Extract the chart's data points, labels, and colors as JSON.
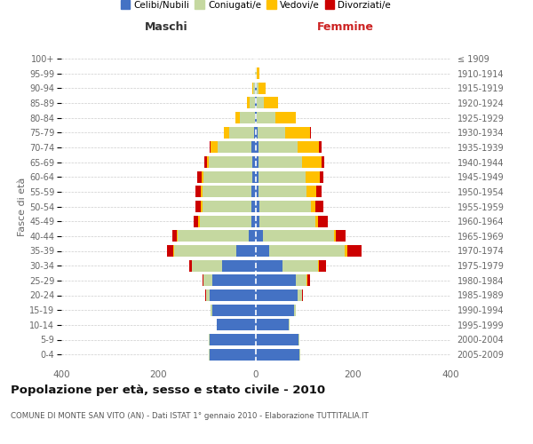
{
  "age_groups": [
    "0-4",
    "5-9",
    "10-14",
    "15-19",
    "20-24",
    "25-29",
    "30-34",
    "35-39",
    "40-44",
    "45-49",
    "50-54",
    "55-59",
    "60-64",
    "65-69",
    "70-74",
    "75-79",
    "80-84",
    "85-89",
    "90-94",
    "95-99",
    "100+"
  ],
  "birth_years": [
    "2005-2009",
    "2000-2004",
    "1995-1999",
    "1990-1994",
    "1985-1989",
    "1980-1984",
    "1975-1979",
    "1970-1974",
    "1965-1969",
    "1960-1964",
    "1955-1959",
    "1950-1954",
    "1945-1949",
    "1940-1944",
    "1935-1939",
    "1930-1934",
    "1925-1929",
    "1920-1924",
    "1915-1919",
    "1910-1914",
    "≤ 1909"
  ],
  "male_celibi": [
    95,
    95,
    80,
    90,
    95,
    90,
    70,
    40,
    15,
    10,
    10,
    10,
    8,
    8,
    10,
    4,
    2,
    1,
    1,
    0,
    0
  ],
  "male_coniugati": [
    2,
    2,
    1,
    4,
    8,
    18,
    62,
    128,
    145,
    105,
    100,
    100,
    100,
    88,
    68,
    50,
    30,
    12,
    5,
    1,
    0
  ],
  "male_vedovi": [
    0,
    0,
    0,
    0,
    0,
    0,
    0,
    2,
    2,
    3,
    3,
    3,
    4,
    5,
    15,
    12,
    10,
    5,
    2,
    0,
    0
  ],
  "male_divorziati": [
    0,
    0,
    0,
    0,
    1,
    2,
    5,
    12,
    10,
    10,
    12,
    12,
    8,
    5,
    2,
    0,
    0,
    0,
    0,
    0,
    0
  ],
  "female_nubili": [
    90,
    88,
    68,
    78,
    85,
    82,
    55,
    28,
    15,
    8,
    8,
    5,
    5,
    5,
    5,
    3,
    2,
    1,
    1,
    0,
    0
  ],
  "female_coniugate": [
    2,
    2,
    2,
    4,
    10,
    22,
    72,
    155,
    145,
    115,
    105,
    100,
    98,
    90,
    80,
    58,
    38,
    15,
    5,
    2,
    0
  ],
  "female_vedove": [
    0,
    0,
    0,
    0,
    0,
    2,
    2,
    5,
    5,
    5,
    10,
    20,
    28,
    40,
    45,
    50,
    42,
    30,
    15,
    5,
    0
  ],
  "female_divorziate": [
    0,
    0,
    0,
    1,
    2,
    5,
    15,
    30,
    20,
    20,
    15,
    10,
    8,
    5,
    5,
    2,
    0,
    0,
    0,
    0,
    0
  ],
  "colors": {
    "celibi": "#4472c4",
    "coniugati": "#c5d8a0",
    "vedovi": "#ffc000",
    "divorziati": "#cc0000"
  },
  "xlim": 400,
  "title": "Popolazione per età, sesso e stato civile - 2010",
  "subtitle": "COMUNE DI MONTE SAN VITO (AN) - Dati ISTAT 1° gennaio 2010 - Elaborazione TUTTITALIA.IT",
  "ylabel": "Fasce di età",
  "label_maschi": "Maschi",
  "label_femmine": "Femmine",
  "legend_labels": [
    "Celibi/Nubili",
    "Coniugati/e",
    "Vedovi/e",
    "Divorziati/e"
  ],
  "background_color": "#ffffff",
  "grid_color": "#cccccc"
}
